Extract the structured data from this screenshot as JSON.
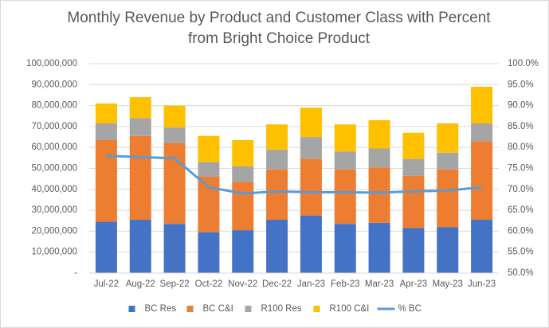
{
  "chart_data": {
    "type": "bar",
    "stacked": true,
    "title": "Monthly Revenue by Product and Customer Class with Percent from Bright Choice Product",
    "categories": [
      "Jul-22",
      "Aug-22",
      "Sep-22",
      "Oct-22",
      "Nov-22",
      "Dec-22",
      "Jan-23",
      "Feb-23",
      "Mar-23",
      "Apr-23",
      "May-23",
      "Jun-23"
    ],
    "series": [
      {
        "name": "BC Res",
        "type": "bar",
        "color": "#4472c4",
        "values": [
          24500000,
          25500000,
          23500000,
          19500000,
          20500000,
          25500000,
          27500000,
          23500000,
          24000000,
          21500000,
          22000000,
          25500000
        ]
      },
      {
        "name": "BC C&I",
        "type": "bar",
        "color": "#ed7d31",
        "values": [
          39000000,
          40000000,
          38500000,
          26500000,
          23000000,
          24000000,
          27000000,
          26000000,
          26500000,
          25000000,
          27500000,
          37500000
        ]
      },
      {
        "name": "R100 Res",
        "type": "bar",
        "color": "#a5a5a5",
        "values": [
          8000000,
          8500000,
          7500000,
          7000000,
          7500000,
          9500000,
          10500000,
          8500000,
          9000000,
          8000000,
          8000000,
          8500000
        ]
      },
      {
        "name": "R100 C&I",
        "type": "bar",
        "color": "#ffc000",
        "values": [
          9500000,
          10000000,
          10500000,
          12500000,
          12500000,
          12000000,
          14000000,
          13000000,
          13500000,
          12500000,
          14000000,
          17500000
        ]
      },
      {
        "name": "% BC",
        "type": "line",
        "axis": "y2",
        "color": "#5b9bd5",
        "values": [
          78,
          77.7,
          77.4,
          70.5,
          69,
          69.5,
          69.3,
          69.3,
          69.2,
          69.5,
          69.7,
          70.5
        ]
      }
    ],
    "ylim": [
      0,
      100000000
    ],
    "yticks": [
      {
        "value": 0,
        "label": "-"
      },
      {
        "value": 10000000,
        "label": "10,000,000"
      },
      {
        "value": 20000000,
        "label": "20,000,000"
      },
      {
        "value": 30000000,
        "label": "30,000,000"
      },
      {
        "value": 40000000,
        "label": "40,000,000"
      },
      {
        "value": 50000000,
        "label": "50,000,000"
      },
      {
        "value": 60000000,
        "label": "60,000,000"
      },
      {
        "value": 70000000,
        "label": "70,000,000"
      },
      {
        "value": 80000000,
        "label": "80,000,000"
      },
      {
        "value": 90000000,
        "label": "90,000,000"
      },
      {
        "value": 100000000,
        "label": "100,000,000"
      }
    ],
    "y2lim": [
      50,
      100
    ],
    "y2ticks": [
      {
        "value": 50,
        "label": "50.0%"
      },
      {
        "value": 55,
        "label": "55.0%"
      },
      {
        "value": 60,
        "label": "60.0%"
      },
      {
        "value": 65,
        "label": "65.0%"
      },
      {
        "value": 70,
        "label": "70.0%"
      },
      {
        "value": 75,
        "label": "75.0%"
      },
      {
        "value": 80,
        "label": "80.0%"
      },
      {
        "value": 85,
        "label": "85.0%"
      },
      {
        "value": 90,
        "label": "90.0%"
      },
      {
        "value": 95,
        "label": "95.0%"
      },
      {
        "value": 100,
        "label": "100.0%"
      }
    ],
    "grid": true,
    "legend": "bottom"
  }
}
